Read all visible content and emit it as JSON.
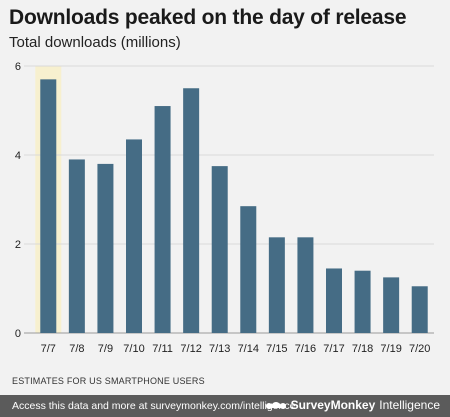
{
  "header": {
    "title": "Downloads peaked on the day of release",
    "subtitle": "Total downloads (millions)"
  },
  "footnote": "ESTIMATES FOR US SMARTPHONE USERS",
  "footer": {
    "text": "Access this data and more at surveymonkey.com/intelligence",
    "brand_name": "SurveyMonkey",
    "brand_sub": "Intelligence"
  },
  "colors": {
    "bar": "#456c85",
    "highlight": "#f7f0cf",
    "grid": "#d9d9d9",
    "background": "#f2f2f2"
  },
  "chart_data": {
    "type": "bar",
    "categories": [
      "7/7",
      "7/8",
      "7/9",
      "7/10",
      "7/11",
      "7/12",
      "7/13",
      "7/14",
      "7/15",
      "7/16",
      "7/17",
      "7/18",
      "7/19",
      "7/20"
    ],
    "values": [
      5.7,
      3.9,
      3.8,
      4.35,
      5.1,
      5.5,
      3.75,
      2.85,
      2.15,
      2.15,
      1.45,
      1.4,
      1.25,
      1.05
    ],
    "highlight_category": "7/7",
    "ylim": [
      0,
      6
    ],
    "yticks": [
      0,
      2,
      4,
      6
    ],
    "grid": true
  }
}
